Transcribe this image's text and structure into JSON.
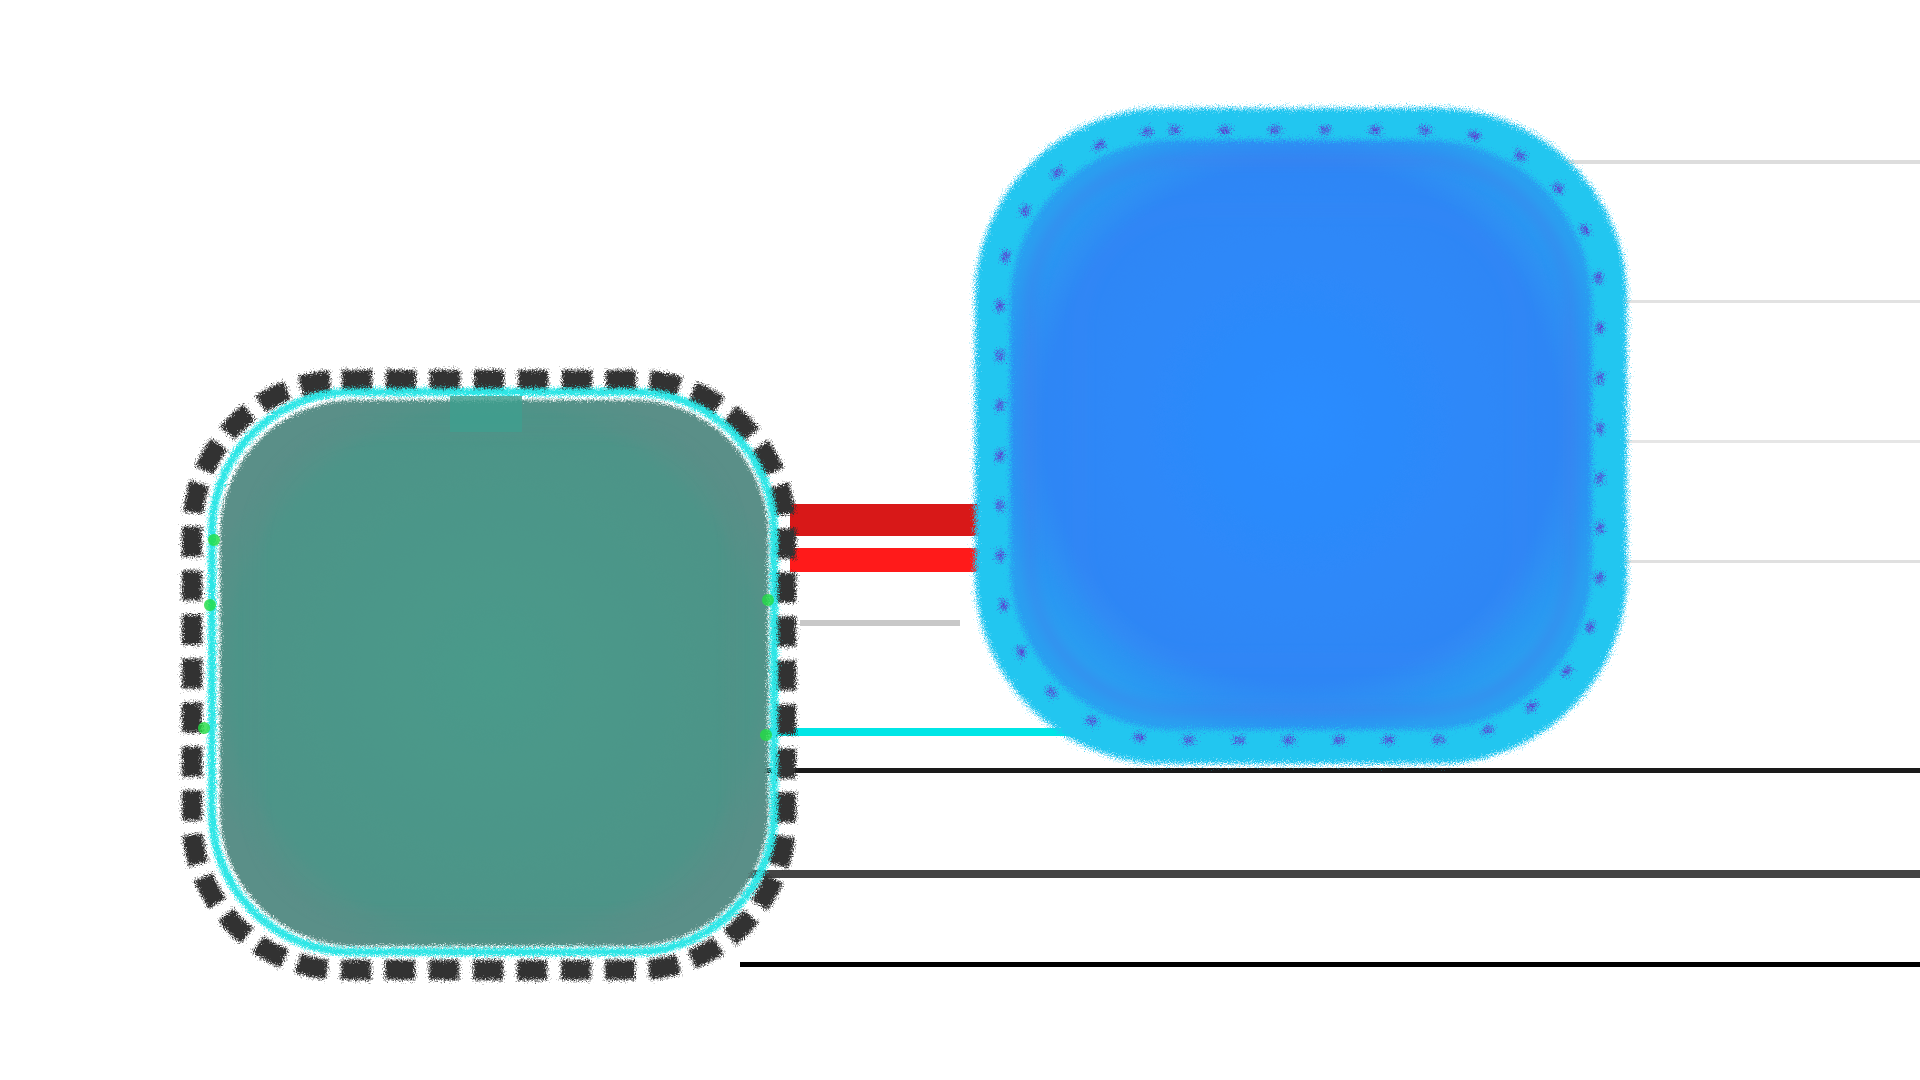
{
  "canvas": {
    "background": "#ffffff"
  },
  "shapes": {
    "left_blob": {
      "fill": "#4a9a8a",
      "rim": "#2ee6e6",
      "outer_noise": "#333333",
      "accent": "#22dd44"
    },
    "right_blob": {
      "fill": "#2a8cff",
      "rim": "#22c6f0",
      "accent": "#5a3fd0"
    }
  },
  "streaks": {
    "colors": [
      "#e01818",
      "#00e0e0",
      "#000000",
      "#202020",
      "#404040"
    ]
  }
}
